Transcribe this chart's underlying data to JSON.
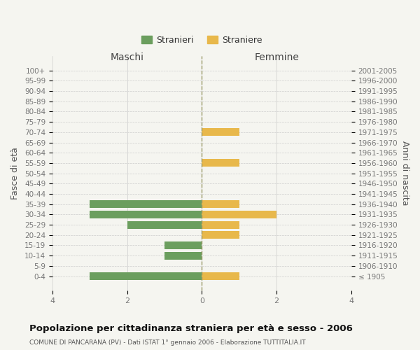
{
  "age_groups": [
    "100+",
    "95-99",
    "90-94",
    "85-89",
    "80-84",
    "75-79",
    "70-74",
    "65-69",
    "60-64",
    "55-59",
    "50-54",
    "45-49",
    "40-44",
    "35-39",
    "30-34",
    "25-29",
    "20-24",
    "15-19",
    "10-14",
    "5-9",
    "0-4"
  ],
  "birth_years": [
    "≤ 1905",
    "1906-1910",
    "1911-1915",
    "1916-1920",
    "1921-1925",
    "1926-1930",
    "1931-1935",
    "1936-1940",
    "1941-1945",
    "1946-1950",
    "1951-1955",
    "1956-1960",
    "1961-1965",
    "1966-1970",
    "1971-1975",
    "1976-1980",
    "1981-1985",
    "1986-1990",
    "1991-1995",
    "1996-2000",
    "2001-2005"
  ],
  "maschi": [
    0,
    0,
    0,
    0,
    0,
    0,
    0,
    0,
    0,
    0,
    0,
    0,
    0,
    3,
    3,
    2,
    0,
    1,
    1,
    0,
    3
  ],
  "femmine": [
    0,
    0,
    0,
    0,
    0,
    0,
    1,
    0,
    0,
    1,
    0,
    0,
    0,
    1,
    2,
    1,
    1,
    0,
    0,
    0,
    1
  ],
  "male_color": "#6b9e5e",
  "female_color": "#e8b84b",
  "male_label": "Stranieri",
  "female_label": "Straniere",
  "title": "Popolazione per cittadinanza straniera per età e sesso - 2006",
  "subtitle": "COMUNE DI PANCARANA (PV) - Dati ISTAT 1° gennaio 2006 - Elaborazione TUTTITALIA.IT",
  "xlabel_left": "Maschi",
  "xlabel_right": "Femmine",
  "ylabel_left": "Fasce di età",
  "ylabel_right": "Anni di nascita",
  "xlim": 4,
  "background_color": "#f5f5f0",
  "grid_color": "#cccccc"
}
